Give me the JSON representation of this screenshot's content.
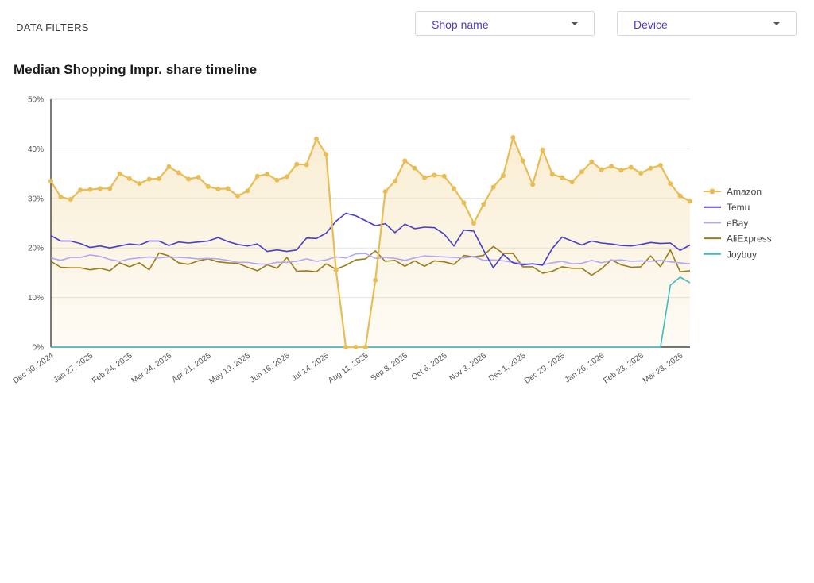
{
  "filters": {
    "label": "DATA FILTERS",
    "shop": {
      "label": "Shop name"
    },
    "device": {
      "label": "Device"
    }
  },
  "chart_data": {
    "type": "line",
    "title": "Median Shopping Impr. share timeline",
    "xlabel": "",
    "ylabel": "",
    "ylim": [
      0,
      50
    ],
    "yticks": [
      "0%",
      "10%",
      "20%",
      "30%",
      "40%",
      "50%"
    ],
    "y_unit": "%",
    "grid": true,
    "legend": "right",
    "x_tick_labels": [
      {
        "i": 0,
        "label": "Dec 30, 2024"
      },
      {
        "i": 4,
        "label": "Jan 27, 2025"
      },
      {
        "i": 8,
        "label": "Feb 24, 2025"
      },
      {
        "i": 12,
        "label": "Mar 24, 2025"
      },
      {
        "i": 16,
        "label": "Apr 21, 2025"
      },
      {
        "i": 20,
        "label": "May 19, 2025"
      },
      {
        "i": 24,
        "label": "Jun 16, 2025"
      },
      {
        "i": 28,
        "label": "Jul 14, 2025"
      },
      {
        "i": 32,
        "label": "Aug 11, 2025"
      },
      {
        "i": 36,
        "label": "Sep 8, 2025"
      },
      {
        "i": 40,
        "label": "Oct 6, 2025"
      },
      {
        "i": 44,
        "label": "Nov 3, 2025"
      },
      {
        "i": 48,
        "label": "Dec 1, 2025"
      },
      {
        "i": 52,
        "label": "Dec 29, 2025"
      },
      {
        "i": 56,
        "label": "Jan 26, 2026"
      },
      {
        "i": 60,
        "label": "Feb 23, 2026"
      },
      {
        "i": 64,
        "label": "Mar 23, 2026"
      }
    ],
    "n_points": 66,
    "series": [
      {
        "name": "Amazon",
        "color": "#e8bd55",
        "markers": true,
        "area": true,
        "values": [
          33.5,
          30.3,
          29.8,
          31.7,
          31.8,
          32.0,
          32.0,
          35.0,
          34.0,
          33.0,
          33.9,
          34.0,
          36.4,
          35.2,
          33.9,
          34.3,
          32.4,
          31.9,
          32.0,
          30.5,
          31.5,
          34.5,
          34.9,
          33.7,
          34.4,
          36.9,
          36.8,
          42.0,
          38.9,
          15.5,
          0.0,
          0.0,
          0.0,
          13.5,
          31.4,
          33.5,
          37.6,
          36.1,
          34.2,
          34.7,
          34.5,
          32.0,
          29.1,
          25.0,
          28.8,
          32.3,
          34.6,
          42.3,
          37.6,
          32.8,
          39.8,
          34.9,
          34.2,
          33.3,
          35.4,
          37.4,
          35.8,
          36.5,
          35.7,
          36.3,
          35.1,
          36.1,
          36.7,
          33.0,
          30.5,
          29.4
        ]
      },
      {
        "name": "Temu",
        "color": "#4a3ec6",
        "markers": false,
        "values": [
          22.5,
          21.4,
          21.4,
          20.9,
          20.1,
          20.4,
          20.0,
          20.4,
          20.8,
          20.6,
          21.4,
          21.4,
          20.5,
          21.2,
          21.0,
          21.2,
          21.4,
          22.1,
          21.3,
          20.7,
          20.4,
          20.8,
          19.3,
          19.6,
          19.3,
          19.6,
          22.0,
          21.9,
          23.0,
          25.4,
          27.0,
          26.5,
          25.5,
          24.5,
          24.9,
          23.1,
          24.8,
          23.9,
          24.2,
          24.1,
          22.8,
          20.4,
          23.6,
          23.4,
          19.6,
          16.0,
          18.7,
          17.0,
          16.6,
          16.8,
          16.5,
          19.9,
          22.2,
          21.4,
          20.6,
          21.4,
          21.0,
          20.8,
          20.5,
          20.4,
          20.7,
          21.1,
          20.9,
          21.0,
          19.5,
          20.6
        ]
      },
      {
        "name": "eBay",
        "color": "#b3a8f2",
        "markers": false,
        "values": [
          18.0,
          17.5,
          18.1,
          18.1,
          18.6,
          18.3,
          17.7,
          17.3,
          17.8,
          18.0,
          18.2,
          18.0,
          18.2,
          18.1,
          18.0,
          17.8,
          17.9,
          17.8,
          17.5,
          17.1,
          17.1,
          16.8,
          16.7,
          17.1,
          17.1,
          17.3,
          17.8,
          17.3,
          17.6,
          18.2,
          18.0,
          18.8,
          18.9,
          17.9,
          18.1,
          17.9,
          17.5,
          18.0,
          18.4,
          18.3,
          18.2,
          18.1,
          18.0,
          18.3,
          17.5,
          17.6,
          17.4,
          17.1,
          16.8,
          16.8,
          16.6,
          17.0,
          17.3,
          16.8,
          16.9,
          17.5,
          17.0,
          17.5,
          17.6,
          17.3,
          17.4,
          17.3,
          17.5,
          17.2,
          17.0,
          16.8
        ]
      },
      {
        "name": "AliExpress",
        "color": "#9c7b1d",
        "markers": false,
        "values": [
          17.3,
          16.1,
          16.0,
          16.0,
          15.6,
          15.9,
          15.4,
          17.0,
          16.2,
          17.0,
          15.6,
          19.0,
          18.4,
          17.0,
          16.7,
          17.4,
          17.8,
          17.2,
          17.0,
          16.9,
          16.1,
          15.4,
          16.6,
          15.9,
          18.1,
          15.3,
          15.4,
          15.2,
          16.8,
          15.7,
          16.5,
          17.6,
          17.8,
          19.4,
          17.3,
          17.5,
          16.3,
          17.4,
          16.3,
          17.4,
          17.2,
          16.7,
          18.5,
          18.2,
          18.5,
          20.3,
          18.9,
          18.9,
          16.2,
          16.2,
          14.9,
          15.3,
          16.2,
          15.9,
          15.9,
          14.5,
          15.8,
          17.6,
          16.6,
          16.1,
          16.2,
          18.4,
          16.2,
          19.6,
          15.2,
          15.4
        ]
      },
      {
        "name": "Joybuy",
        "color": "#3fbcbf",
        "markers": false,
        "values": [
          0,
          0,
          0,
          0,
          0,
          0,
          0,
          0,
          0,
          0,
          0,
          0,
          0,
          0,
          0,
          0,
          0,
          0,
          0,
          0,
          0,
          0,
          0,
          0,
          0,
          0,
          0,
          0,
          0,
          0,
          0,
          0,
          0,
          0,
          0,
          0,
          0,
          0,
          0,
          0,
          0,
          0,
          0,
          0,
          0,
          0,
          0,
          0,
          0,
          0,
          0,
          0,
          0,
          0,
          0,
          0,
          0,
          0,
          0,
          0,
          0,
          0,
          0,
          12.5,
          14.1,
          13.0
        ]
      }
    ]
  }
}
